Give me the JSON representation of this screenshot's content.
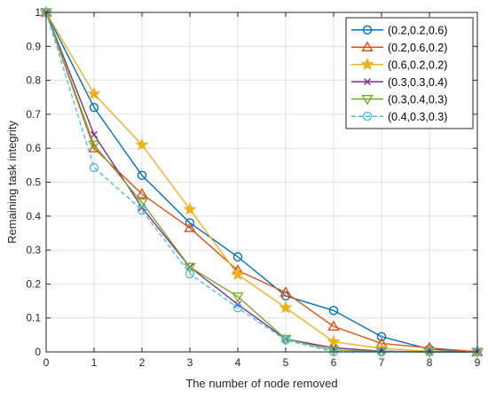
{
  "chart_data": {
    "type": "line",
    "title": "",
    "xlabel": "The number of node removed",
    "ylabel": "Remaining task integrity",
    "xlim": [
      0,
      9
    ],
    "ylim": [
      0,
      1
    ],
    "x": [
      0,
      1,
      2,
      3,
      4,
      5,
      6,
      7,
      8,
      9
    ],
    "xticks": [
      "0",
      "1",
      "2",
      "3",
      "4",
      "5",
      "6",
      "7",
      "8",
      "9"
    ],
    "yticks": [
      "0",
      "0.1",
      "0.2",
      "0.3",
      "0.4",
      "0.5",
      "0.6",
      "0.7",
      "0.8",
      "0.9",
      "1"
    ],
    "grid": true,
    "legend_position": "top-right",
    "series": [
      {
        "name": "(0.2,0.2,0.6)",
        "color": "#0072BD",
        "marker": "circle",
        "dash": "solid",
        "values": [
          1,
          0.72,
          0.52,
          0.38,
          0.28,
          0.165,
          0.122,
          0.045,
          0.008,
          0
        ]
      },
      {
        "name": "(0.2,0.6,0.2)",
        "color": "#D95319",
        "marker": "triangle-up",
        "dash": "solid",
        "values": [
          1,
          0.6,
          0.465,
          0.365,
          0.24,
          0.175,
          0.075,
          0.025,
          0.012,
          0
        ]
      },
      {
        "name": "(0.6,0.2,0.2)",
        "color": "#EDB120",
        "marker": "star",
        "dash": "solid",
        "values": [
          1,
          0.76,
          0.61,
          0.42,
          0.228,
          0.13,
          0.03,
          0.01,
          0.002,
          0
        ]
      },
      {
        "name": "(0.3,0.3,0.4)",
        "color": "#7E2F8E",
        "marker": "x",
        "dash": "solid",
        "values": [
          1,
          0.64,
          0.425,
          0.25,
          0.14,
          0.038,
          0.012,
          0.002,
          0,
          0
        ]
      },
      {
        "name": "(0.3,0.4,0.3)",
        "color": "#77AC30",
        "marker": "triangle-down",
        "dash": "solid",
        "values": [
          1,
          0.61,
          0.44,
          0.25,
          0.163,
          0.038,
          0.005,
          0.001,
          0,
          0
        ]
      },
      {
        "name": "(0.4,0.3,0.3)",
        "color": "#4DBEEE",
        "marker": "circle",
        "dash": "dashed",
        "values": [
          1,
          0.543,
          0.418,
          0.23,
          0.13,
          0.035,
          0.0,
          0.0,
          0,
          0
        ]
      }
    ]
  }
}
